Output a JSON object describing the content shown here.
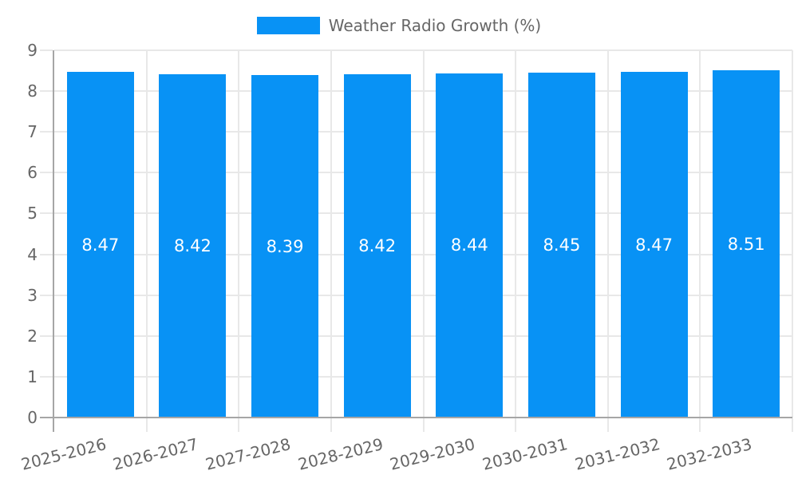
{
  "chart_data": {
    "type": "bar",
    "title": "Weather Radio Growth (%)",
    "categories": [
      "2025-2026",
      "2026-2027",
      "2027-2028",
      "2028-2029",
      "2029-2030",
      "2030-2031",
      "2031-2032",
      "2032-2033"
    ],
    "series": [
      {
        "name": "Weather Radio Growth (%)",
        "values": [
          8.47,
          8.42,
          8.39,
          8.42,
          8.44,
          8.45,
          8.47,
          8.51
        ]
      }
    ],
    "value_labels": [
      "8.47",
      "8.42",
      "8.39",
      "8.42",
      "8.44",
      "8.45",
      "8.47",
      "8.51"
    ],
    "xlabel": "",
    "ylabel": "",
    "ylim": [
      0,
      9
    ],
    "ytick_step": 1,
    "grid": true,
    "legend_position": "top",
    "x_label_rotation_deg": -14,
    "colors": {
      "bar": "#0892f5",
      "axis_text": "#666666",
      "grid_line": "#e8e8e8",
      "axis_border": "#a6a6a6",
      "value_label": "#ffffff",
      "background": "#ffffff"
    }
  },
  "legend": {
    "label": "Weather Radio Growth (%)"
  }
}
